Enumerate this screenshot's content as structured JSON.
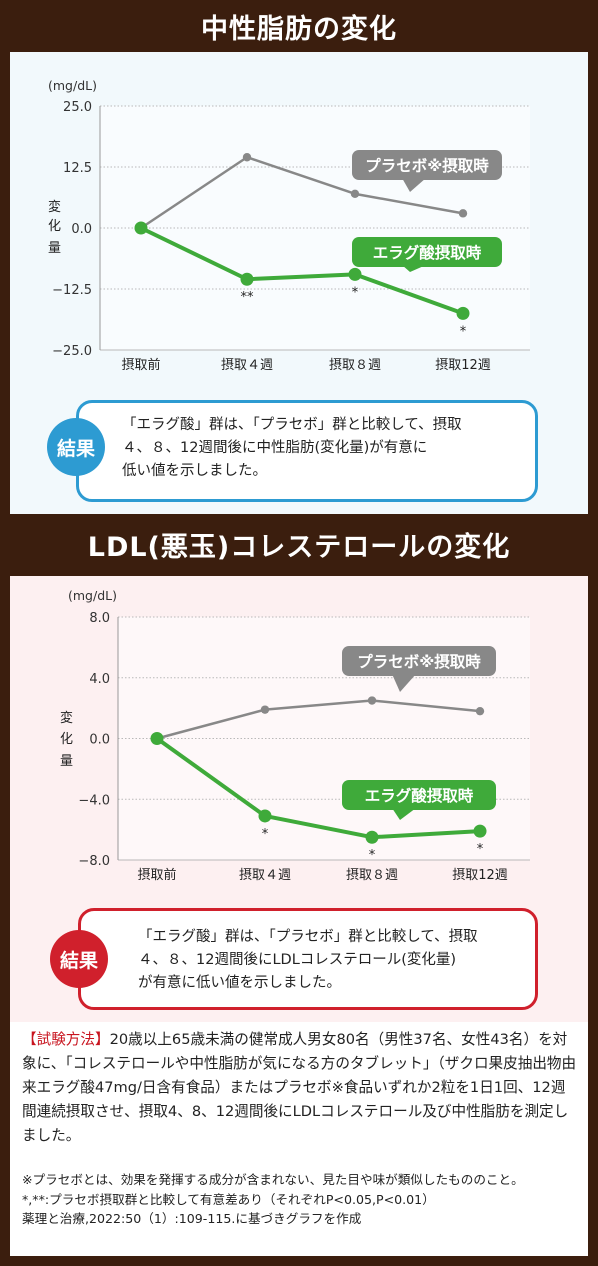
{
  "charts_titles": {
    "top": "中性脂肪の変化",
    "bottom": "LDL(悪玉)コレステロールの変化"
  },
  "chart_data": [
    {
      "type": "line",
      "title": "中性脂肪の変化",
      "unit": "(mg/dL)",
      "ylabel": "変化量",
      "ylim": [
        -25.0,
        25.0
      ],
      "yticks": [
        "25.0",
        "12.5",
        "0.0",
        "−12.5",
        "−25.0"
      ],
      "categories": [
        "摂取前",
        "摂取４週",
        "摂取８週",
        "摂取12週"
      ],
      "series": [
        {
          "name": "プラセボ※摂取時",
          "color": "#888888",
          "values": [
            0.0,
            14.5,
            7.0,
            3.0
          ]
        },
        {
          "name": "エラグ酸摂取時",
          "color": "#3faa3a",
          "values": [
            0.0,
            -10.5,
            -9.5,
            -17.5
          ],
          "significance": [
            "",
            "**",
            "*",
            "*"
          ]
        }
      ],
      "grid": true
    },
    {
      "type": "line",
      "title": "LDL(悪玉)コレステロールの変化",
      "unit": "(mg/dL)",
      "ylabel": "変化量",
      "ylim": [
        -8.0,
        8.0
      ],
      "yticks": [
        "8.0",
        "4.0",
        "0.0",
        "−4.0",
        "−8.0"
      ],
      "categories": [
        "摂取前",
        "摂取４週",
        "摂取８週",
        "摂取12週"
      ],
      "series": [
        {
          "name": "プラセボ※摂取時",
          "color": "#888888",
          "values": [
            0.0,
            1.9,
            2.5,
            1.8
          ]
        },
        {
          "name": "エラグ酸摂取時",
          "color": "#3faa3a",
          "values": [
            0.0,
            -5.1,
            -6.5,
            -6.1
          ],
          "significance": [
            "",
            "*",
            "*",
            "*"
          ]
        }
      ],
      "grid": true
    }
  ],
  "results": {
    "badge": "結果",
    "top_text": "「エラグ酸」群は、「プラセボ」群と比較して、摂取\n４、８、12週間後に中性脂肪(変化量)が有意に\n低い値を示しました。",
    "bottom_text": "「エラグ酸」群は、「プラセボ」群と比較して、摂取\n４、８、12週間後にLDLコレステロール(変化量)\nが有意に低い値を示しました。"
  },
  "method": {
    "tag": "【試験方法】",
    "text": "20歳以上65歳未満の健常成人男女80名（男性37名、女性43名）を対象に、「コレステロールや中性脂肪が気になる方のタブレット」（ザクロ果皮抽出物由来エラグ酸47mg/日含有食品）またはプラセボ※食品いずれか2粒を1日1回、12週間連続摂取させ、摂取4、8、12週間後にLDLコレステロール及び中性脂肪を測定しました。"
  },
  "notes": [
    "※プラセボとは、効果を発揮する成分が含まれない、見た目や味が類似したもののこと。",
    "*,**:プラセボ摂取群と比較して有意差あり（それぞれP<0.05,P<0.01）",
    "薬理と治療,2022:50（1）:109-115.に基づきグラフを作成"
  ],
  "colors": {
    "background": "#3b1e0e",
    "green": "#3faa3a",
    "gray": "#888888",
    "blue": "#2d9bd2",
    "red": "#d0202c"
  }
}
